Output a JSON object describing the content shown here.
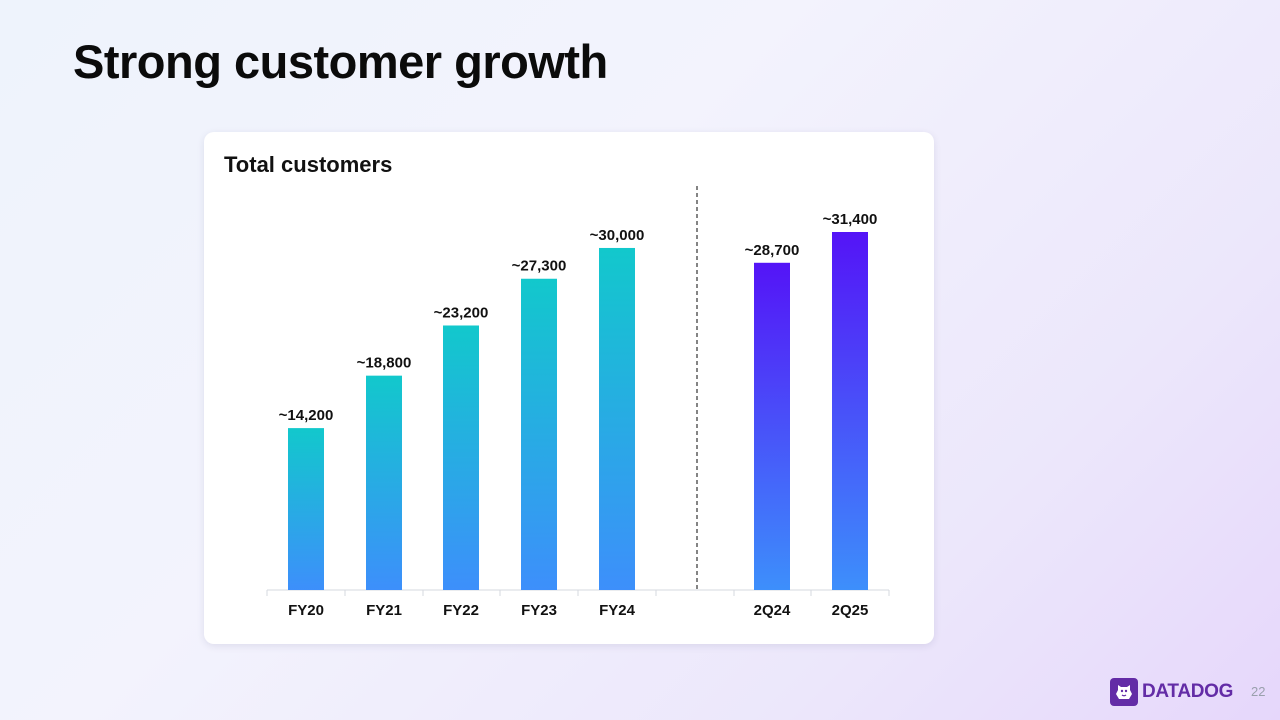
{
  "slide": {
    "title": "Strong customer growth",
    "page_number": "22",
    "brand": "DATADOG"
  },
  "chart_data": {
    "type": "bar",
    "title": "Total customers",
    "categories": [
      "FY20",
      "FY21",
      "FY22",
      "FY23",
      "FY24",
      "2Q24",
      "2Q25"
    ],
    "values": [
      14200,
      18800,
      23200,
      27300,
      30000,
      28700,
      31400
    ],
    "data_labels": [
      "~14,200",
      "~18,800",
      "~23,200",
      "~27,300",
      "~30,000",
      "~28,700",
      "~31,400"
    ],
    "groups": [
      {
        "categories": [
          "FY20",
          "FY21",
          "FY22",
          "FY23",
          "FY24"
        ],
        "color_top": "#12c8cc",
        "color_bottom": "#3d8ffb"
      },
      {
        "categories": [
          "2Q24",
          "2Q25"
        ],
        "color_top": "#5414f7",
        "color_bottom": "#3d8ffb"
      }
    ],
    "ylim": [
      0,
      31400
    ],
    "xlabel": "",
    "ylabel": "",
    "grid": false,
    "legend": "none",
    "separator": "dashed line between FY24 and 2Q24"
  }
}
